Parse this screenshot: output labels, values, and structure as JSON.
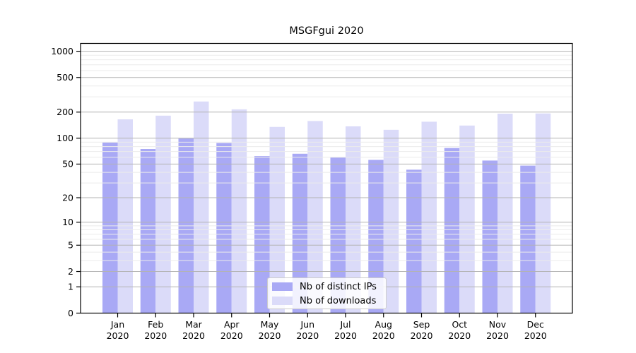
{
  "chart_data": {
    "type": "bar",
    "title": "MSGFgui 2020",
    "categories": [
      "Jan",
      "Feb",
      "Mar",
      "Apr",
      "May",
      "Jun",
      "Jul",
      "Aug",
      "Sep",
      "Oct",
      "Nov",
      "Dec"
    ],
    "category_year": "2020",
    "series": [
      {
        "name": "Nb of distinct IPs",
        "color": "#a9a9f5",
        "values": [
          89,
          75,
          100,
          88,
          62,
          66,
          60,
          56,
          43,
          77,
          55,
          48
        ]
      },
      {
        "name": "Nb of downloads",
        "color": "#dbdbf9",
        "values": [
          165,
          182,
          265,
          215,
          135,
          158,
          137,
          125,
          155,
          140,
          192,
          193
        ]
      }
    ],
    "xlabel": "",
    "ylabel": "",
    "y_scale": "log1p",
    "ylim": [
      0,
      1230
    ],
    "y_ticks": [
      0,
      1,
      2,
      5,
      10,
      20,
      50,
      100,
      200,
      500,
      1000
    ],
    "y_minor_ticks": [
      3,
      4,
      6,
      7,
      8,
      9,
      30,
      40,
      60,
      70,
      80,
      90,
      300,
      400,
      600,
      700,
      800,
      900
    ],
    "grid": true,
    "legend_position": "inside-bottom-center"
  },
  "colors": {
    "background": "#ffffff",
    "axis": "#000000",
    "major_grid": "#b3b3b3",
    "minor_grid": "#ebebeb",
    "bar_ips": "#a9a9f5",
    "bar_downloads": "#dbdbf9",
    "legend_border": "#cccccc"
  }
}
